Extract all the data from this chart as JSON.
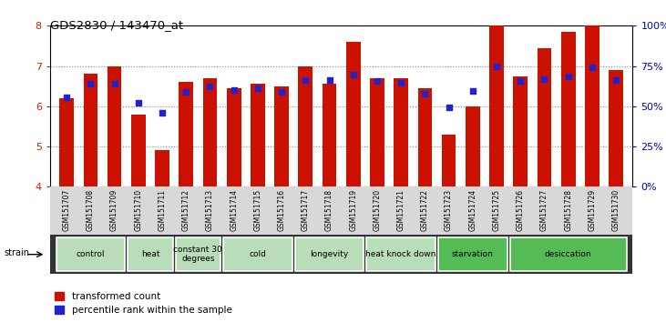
{
  "title": "GDS2830 / 143470_at",
  "samples": [
    "GSM151707",
    "GSM151708",
    "GSM151709",
    "GSM151710",
    "GSM151711",
    "GSM151712",
    "GSM151713",
    "GSM151714",
    "GSM151715",
    "GSM151716",
    "GSM151717",
    "GSM151718",
    "GSM151719",
    "GSM151720",
    "GSM151721",
    "GSM151722",
    "GSM151723",
    "GSM151724",
    "GSM151725",
    "GSM151726",
    "GSM151727",
    "GSM151728",
    "GSM151729",
    "GSM151730"
  ],
  "red_values": [
    6.2,
    6.8,
    7.0,
    5.8,
    4.9,
    6.6,
    6.7,
    6.45,
    6.55,
    6.5,
    7.0,
    6.55,
    7.6,
    6.7,
    6.7,
    6.45,
    5.3,
    6.0,
    8.0,
    6.75,
    7.45,
    7.85,
    8.0,
    6.9
  ],
  "blue_values": [
    6.22,
    6.55,
    6.55,
    6.08,
    5.83,
    6.35,
    6.5,
    6.4,
    6.45,
    6.35,
    6.65,
    6.65,
    6.78,
    6.62,
    6.58,
    6.32,
    5.98,
    6.38,
    6.98,
    6.62,
    6.68,
    6.75,
    6.97,
    6.65
  ],
  "groups": [
    {
      "label": "control",
      "start": 0,
      "end": 2,
      "color": "#b8ddb8"
    },
    {
      "label": "heat",
      "start": 3,
      "end": 4,
      "color": "#b8ddb8"
    },
    {
      "label": "constant 30\ndegrees",
      "start": 5,
      "end": 6,
      "color": "#b8ddb8"
    },
    {
      "label": "cold",
      "start": 7,
      "end": 9,
      "color": "#b8ddb8"
    },
    {
      "label": "longevity",
      "start": 10,
      "end": 12,
      "color": "#b8ddb8"
    },
    {
      "label": "heat knock down",
      "start": 13,
      "end": 15,
      "color": "#b8ddb8"
    },
    {
      "label": "starvation",
      "start": 16,
      "end": 18,
      "color": "#55bb55"
    },
    {
      "label": "desiccation",
      "start": 19,
      "end": 23,
      "color": "#55bb55"
    }
  ],
  "ylim": [
    4,
    8
  ],
  "yticks": [
    4,
    5,
    6,
    7,
    8
  ],
  "right_ytick_labels": [
    "0%",
    "25%",
    "50%",
    "75%",
    "100%"
  ],
  "bar_color": "#cc1100",
  "dot_color": "#2222cc",
  "grid_color": "#888888",
  "tick_label_color_left": "#cc2200",
  "tick_label_color_right": "#0000cc"
}
